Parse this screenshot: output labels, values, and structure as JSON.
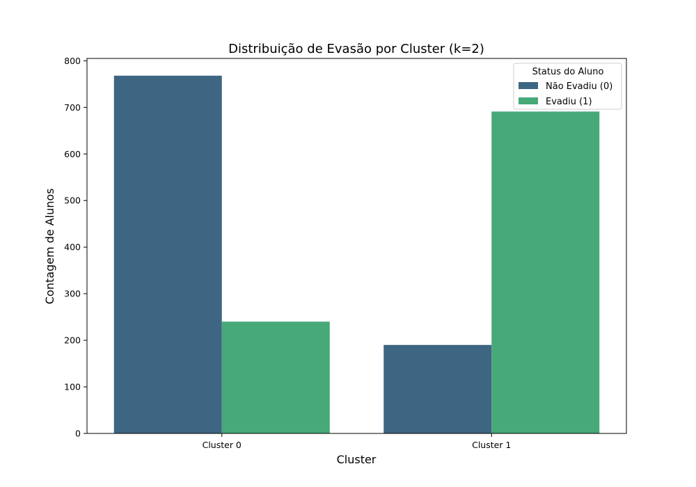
{
  "chart_data": {
    "type": "bar",
    "title": "Distribuição de Evasão por Cluster (k=2)",
    "xlabel": "Cluster",
    "ylabel": "Contagem de Alunos",
    "categories": [
      "Cluster 0",
      "Cluster 1"
    ],
    "series": [
      {
        "name": "Não Evadiu (0)",
        "values": [
          768,
          190
        ],
        "color": "#3e6682"
      },
      {
        "name": "Evadiu (1)",
        "values": [
          240,
          691
        ],
        "color": "#47a878"
      }
    ],
    "ylim": [
      0,
      805
    ],
    "yticks": [
      0,
      100,
      200,
      300,
      400,
      500,
      600,
      700,
      800
    ],
    "grid": false,
    "legend": {
      "title": "Status do Aluno",
      "placement": "top-right"
    }
  }
}
